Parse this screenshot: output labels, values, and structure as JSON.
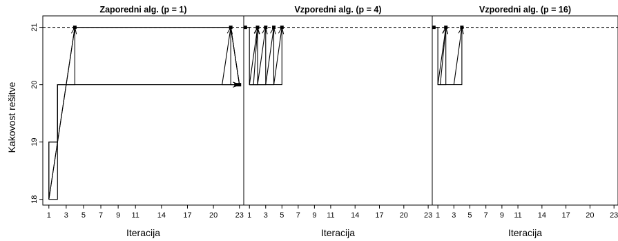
{
  "chart_data": {
    "type": "line",
    "ylabel": "Kakovost rešitve",
    "xlabel": "Iteracija",
    "xlim": [
      0.3,
      23.5
    ],
    "ylim": [
      17.9,
      21.2
    ],
    "x_ticks": [
      1,
      3,
      5,
      7,
      9,
      11,
      14,
      17,
      20,
      23
    ],
    "y_ticks": [
      18,
      19,
      20,
      21
    ],
    "reference_line": {
      "y": 21,
      "style": "dashed"
    },
    "panels": [
      {
        "title": "Zaporedni alg. (p = 1)",
        "runs": [
          {
            "x": [
              1,
              1,
              2,
              2,
              22,
              23
            ],
            "y": [
              18,
              19,
              19,
              20,
              20,
              20
            ]
          },
          {
            "x": [
              1,
              2,
              2,
              3,
              3,
              22,
              22,
              23
            ],
            "y": [
              18,
              18,
              20,
              20,
              20,
              20,
              21,
              20
            ]
          },
          {
            "x": [
              1,
              1,
              2,
              2,
              3,
              4,
              4,
              22,
              23
            ],
            "y": [
              18,
              19,
              19,
              20,
              20,
              20,
              21,
              21,
              20
            ]
          },
          {
            "x": [
              1,
              4,
              22,
              23
            ],
            "y": [
              18,
              21,
              21,
              20
            ]
          }
        ],
        "arrows": [
          {
            "from": [
              1,
              18
            ],
            "to": [
              4,
              21
            ]
          },
          {
            "from": [
              21,
              20
            ],
            "to": [
              22,
              21
            ]
          },
          {
            "from": [
              21,
              20
            ],
            "to": [
              23,
              20
            ]
          },
          {
            "from": [
              22,
              20
            ],
            "to": [
              23,
              20
            ]
          }
        ],
        "points": [
          [
            4,
            21
          ],
          [
            22,
            21
          ],
          [
            23,
            20
          ],
          [
            22.6,
            20
          ]
        ]
      },
      {
        "title": "Vzporedni alg. (p = 4)",
        "runs": [
          {
            "x": [
              0.5,
              1,
              1,
              2,
              2
            ],
            "y": [
              21,
              21,
              20,
              20,
              21
            ]
          },
          {
            "x": [
              1,
              2,
              3,
              3
            ],
            "y": [
              20,
              20,
              20,
              21
            ]
          },
          {
            "x": [
              1,
              3,
              4,
              4
            ],
            "y": [
              20,
              20,
              20,
              21
            ]
          },
          {
            "x": [
              1,
              4,
              5,
              5
            ],
            "y": [
              20,
              20,
              20,
              21
            ]
          }
        ],
        "arrows": [
          {
            "from": [
              1,
              20
            ],
            "to": [
              2,
              21
            ]
          },
          {
            "from": [
              1.5,
              20
            ],
            "to": [
              2,
              21
            ]
          },
          {
            "from": [
              2,
              20
            ],
            "to": [
              3,
              21
            ]
          },
          {
            "from": [
              3,
              20
            ],
            "to": [
              4,
              21
            ]
          },
          {
            "from": [
              4,
              20
            ],
            "to": [
              5,
              21
            ]
          }
        ],
        "points": [
          [
            0.5,
            21
          ],
          [
            2,
            21
          ],
          [
            3,
            21
          ],
          [
            4,
            21
          ],
          [
            5,
            21
          ]
        ]
      },
      {
        "title": "Vzporedni alg. (p = 16)",
        "runs": [
          {
            "x": [
              0.5,
              1,
              1,
              2,
              2
            ],
            "y": [
              21,
              21,
              20,
              20,
              21
            ]
          },
          {
            "x": [
              1,
              3,
              4,
              4
            ],
            "y": [
              20,
              20,
              20,
              21
            ]
          }
        ],
        "arrows": [
          {
            "from": [
              1,
              20
            ],
            "to": [
              2,
              21
            ]
          },
          {
            "from": [
              1.3,
              20
            ],
            "to": [
              2,
              21
            ]
          },
          {
            "from": [
              3,
              20
            ],
            "to": [
              4,
              21
            ]
          }
        ],
        "points": [
          [
            0.5,
            21
          ],
          [
            2,
            21
          ],
          [
            4,
            21
          ]
        ]
      }
    ]
  }
}
